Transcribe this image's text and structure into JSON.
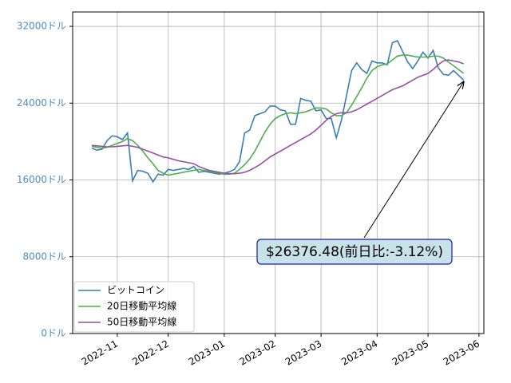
{
  "chart_data": {
    "type": "line",
    "categories": [
      null,
      null,
      null,
      null,
      null,
      "2022-11",
      null,
      null,
      null,
      null,
      null,
      null,
      null,
      null,
      null,
      "2022-12",
      null,
      null,
      null,
      null,
      null,
      null,
      null,
      null,
      null,
      null,
      "2023-01",
      null,
      null,
      null,
      null,
      null,
      null,
      null,
      null,
      null,
      "2023-02",
      null,
      null,
      null,
      null,
      null,
      null,
      null,
      null,
      "2023-03",
      null,
      null,
      null,
      null,
      null,
      null,
      null,
      null,
      null,
      null,
      "2023-04",
      null,
      null,
      null,
      null,
      null,
      null,
      null,
      null,
      null,
      "2023-05",
      null,
      null,
      null,
      null,
      null,
      null,
      null,
      null,
      null,
      "2023-06"
    ],
    "series": [
      {
        "name": "ビットコイン",
        "color": "#377eb8",
        "values": [
          19300,
          19100,
          19200,
          20100,
          20600,
          20500,
          20200,
          20900,
          15900,
          17000,
          16900,
          16700,
          15800,
          16600,
          16500,
          17100,
          17000,
          17100,
          17200,
          17100,
          17400,
          16800,
          16900,
          16800,
          16700,
          16600,
          16700,
          16850,
          17100,
          17900,
          20900,
          21200,
          22700,
          22900,
          23100,
          23700,
          23700,
          23300,
          23200,
          21800,
          21800,
          24500,
          24300,
          24200,
          23200,
          23300,
          22400,
          22400,
          20400,
          22200,
          24800,
          27400,
          28200,
          27500,
          27100,
          28400,
          28200,
          28200,
          28000,
          30300,
          30500,
          29400,
          28300,
          27600,
          28400,
          29300,
          28700,
          29500,
          27700,
          27000,
          26900,
          27400,
          26900,
          26400,
          null,
          null,
          null
        ]
      },
      {
        "name": "20日移動平均線",
        "color": "#4daf4a",
        "values": [
          19500,
          19400,
          19300,
          19400,
          19600,
          19800,
          20000,
          20300,
          20100,
          19600,
          19000,
          18300,
          17700,
          17000,
          16700,
          16500,
          16600,
          16700,
          16800,
          16900,
          17000,
          17100,
          17000,
          16900,
          16800,
          16700,
          16600,
          16600,
          16700,
          17100,
          17600,
          18200,
          19000,
          20000,
          21000,
          21800,
          22400,
          22700,
          22900,
          23000,
          22900,
          23000,
          23100,
          23300,
          23500,
          23500,
          23400,
          23000,
          22700,
          22700,
          23000,
          23800,
          24700,
          25600,
          26600,
          27400,
          27800,
          28000,
          28100,
          28500,
          28900,
          29000,
          29000,
          28900,
          28800,
          28800,
          28800,
          28900,
          28900,
          28700,
          28300,
          27900,
          27500,
          27100,
          null,
          null,
          null
        ]
      },
      {
        "name": "50日移動平均線",
        "color": "#984ea3",
        "values": [
          19600,
          19550,
          19500,
          19450,
          19450,
          19500,
          19550,
          19600,
          19500,
          19400,
          19200,
          19000,
          18800,
          18600,
          18400,
          18300,
          18150,
          18000,
          17900,
          17800,
          17700,
          17400,
          17200,
          17000,
          16900,
          16800,
          16700,
          16650,
          16650,
          16700,
          16800,
          17000,
          17300,
          17600,
          18000,
          18400,
          18700,
          19000,
          19300,
          19600,
          19900,
          20200,
          20500,
          20800,
          21200,
          21700,
          22200,
          22600,
          22900,
          23000,
          23000,
          23100,
          23300,
          23600,
          23900,
          24200,
          24500,
          24800,
          25100,
          25400,
          25600,
          25800,
          26100,
          26400,
          26700,
          26900,
          27100,
          27500,
          28000,
          28400,
          28500,
          28400,
          28300,
          28100,
          null,
          null,
          null
        ]
      }
    ],
    "ylim": [
      0,
      33500
    ],
    "yticks": [
      {
        "value": 0,
        "label": "0ドル"
      },
      {
        "value": 8000,
        "label": "8000ドル"
      },
      {
        "value": 16000,
        "label": "16000ドル"
      },
      {
        "value": 24000,
        "label": "24000ドル"
      },
      {
        "value": 32000,
        "label": "32000ドル"
      }
    ],
    "grid": true,
    "legend": "lower left",
    "annotation": "$26376.48(前日比:-3.12%)"
  }
}
